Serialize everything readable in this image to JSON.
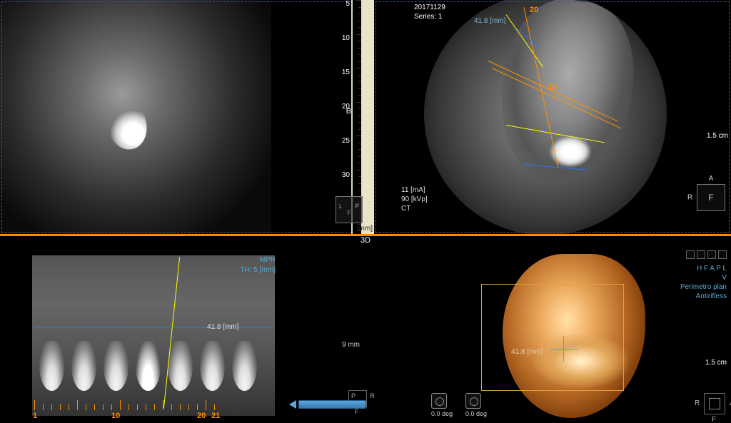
{
  "top_left": {
    "ruler": {
      "ticks": [
        5,
        10,
        15,
        20,
        25,
        30
      ],
      "label_b": "B",
      "unit": "[mm]"
    },
    "orientation": {
      "left": "L",
      "right": "P",
      "bottom": "F"
    }
  },
  "top_right": {
    "meta_top": {
      "date": "20171129",
      "series": "Series: 1"
    },
    "center_mark": "10",
    "top_mark": "20",
    "mm_label": "41.8 [mm]",
    "side_meta": {
      "ma": "11 [mA]",
      "kvp": "90 [kVp]",
      "modality": "CT"
    },
    "scale": "1.5 cm",
    "orientation": {
      "a": "A",
      "r": "R",
      "f": "F"
    }
  },
  "divider_label": "3D",
  "bottom_left": {
    "mpr": "MPR",
    "th": "TH: 5 [mm]",
    "mm_label": "41.8 [mm]",
    "mm9": "9 mm",
    "scale_nums": {
      "n1": "1",
      "n10": "10",
      "n20": "20",
      "n21": "21"
    },
    "orientation": {
      "p": "P",
      "r": "R",
      "f": "F"
    }
  },
  "bottom_right": {
    "links": {
      "hfapl": "H F A P L",
      "v": "V",
      "perimetro": "Perimetro plan",
      "antirifless": "Antirifless"
    },
    "mm_label": "41.8 [mm]",
    "deg": "0.0 deg",
    "scale": "1.5 cm",
    "orientation": {
      "r": "R",
      "a": "A",
      "f": "F"
    }
  }
}
